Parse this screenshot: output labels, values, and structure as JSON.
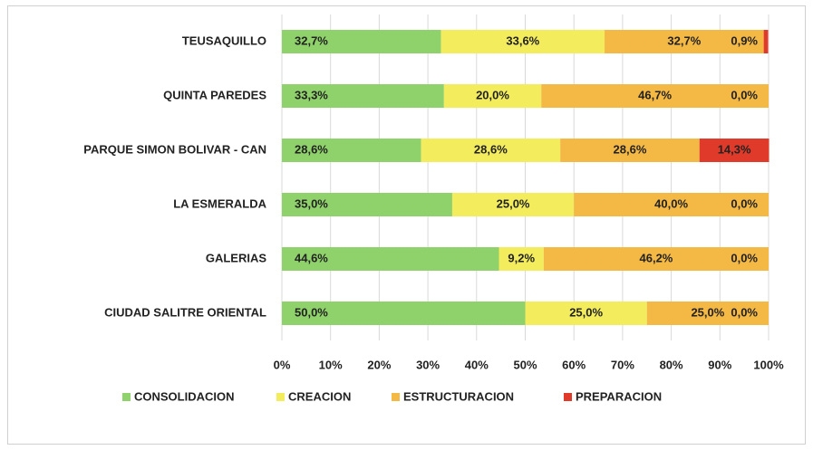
{
  "chart_data": {
    "type": "stacked_barh",
    "categories": [
      "TEUSAQUILLO",
      "QUINTA PAREDES",
      "PARQUE SIMON BOLIVAR - CAN",
      "LA ESMERALDA",
      "GALERIAS",
      "CIUDAD SALITRE ORIENTAL"
    ],
    "series": [
      {
        "name": "CONSOLIDACION",
        "color": "#8fd16b",
        "values": [
          32.7,
          33.3,
          28.6,
          35.0,
          44.6,
          50.0
        ],
        "value_labels": [
          "32,7%",
          "33,3%",
          "28,6%",
          "35,0%",
          "44,6%",
          "50,0%"
        ]
      },
      {
        "name": "CREACION",
        "color": "#f3ec5c",
        "values": [
          33.6,
          20.0,
          28.6,
          25.0,
          9.2,
          25.0
        ],
        "value_labels": [
          "33,6%",
          "20,0%",
          "28,6%",
          "25,0%",
          "9,2%",
          "25,0%"
        ]
      },
      {
        "name": "ESTRUCTURACION",
        "color": "#f4b844",
        "values": [
          32.7,
          46.7,
          28.6,
          40.0,
          46.2,
          25.0
        ],
        "value_labels": [
          "32,7%",
          "46,7%",
          "28,6%",
          "40,0%",
          "46,2%",
          "25,0%"
        ]
      },
      {
        "name": "PREPARACION",
        "color": "#e03a2a",
        "values": [
          0.9,
          0.0,
          14.3,
          0.0,
          0.0,
          0.0
        ],
        "value_labels": [
          "0,9%",
          "0,0%",
          "14,3%",
          "0,0%",
          "0,0%",
          "0,0%"
        ]
      }
    ],
    "xlim": [
      0,
      100
    ],
    "xticks": [
      {
        "value": 0,
        "label": "0%"
      },
      {
        "value": 10,
        "label": "10%"
      },
      {
        "value": 20,
        "label": "20%"
      },
      {
        "value": 30,
        "label": "30%"
      },
      {
        "value": 40,
        "label": "40%"
      },
      {
        "value": 50,
        "label": "50%"
      },
      {
        "value": 60,
        "label": "60%"
      },
      {
        "value": 70,
        "label": "70%"
      },
      {
        "value": 80,
        "label": "80%"
      },
      {
        "value": 90,
        "label": "90%"
      },
      {
        "value": 100,
        "label": "100%"
      }
    ],
    "grid": true,
    "legend": "bottom"
  }
}
